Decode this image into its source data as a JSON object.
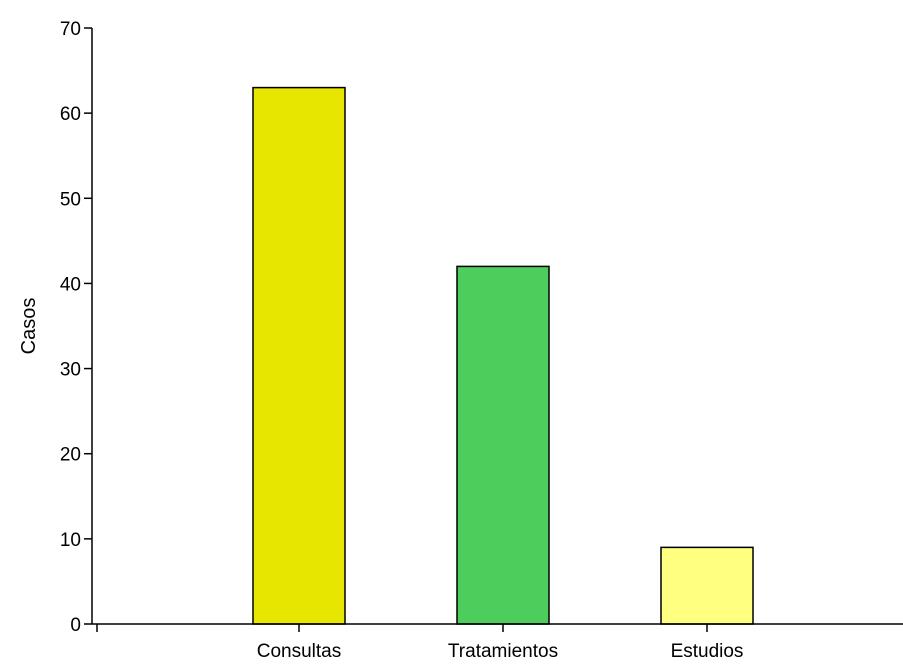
{
  "chart_data": {
    "type": "bar",
    "title": "",
    "xlabel": "",
    "ylabel": "Casos",
    "categories": [
      "Consultas",
      "Tratamientos",
      "Estudios"
    ],
    "values": [
      63,
      42,
      9
    ],
    "colors": [
      "#e6e600",
      "#4ccd5c",
      "#ffff80"
    ],
    "ylim": [
      0,
      70
    ],
    "yticks": [
      0,
      10,
      20,
      30,
      40,
      50,
      60,
      70
    ],
    "ytick_labels": [
      "0",
      "10",
      "20",
      "30",
      "40",
      "50",
      "60",
      "70"
    ],
    "grid": false,
    "legend": "none"
  }
}
